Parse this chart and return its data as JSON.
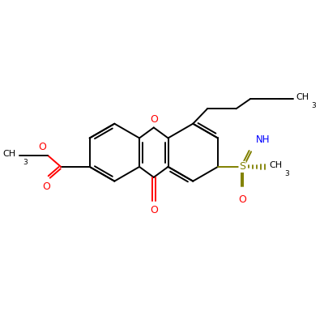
{
  "bg_color": "#ffffff",
  "lw": 1.4,
  "fig_size": [
    4.0,
    4.0
  ],
  "dpi": 100,
  "xlim": [
    0,
    10
  ],
  "ylim": [
    0,
    10
  ],
  "bond_color": "#000000",
  "red_color": "#ff0000",
  "olive_color": "#808000",
  "blue_color": "#0000ff"
}
